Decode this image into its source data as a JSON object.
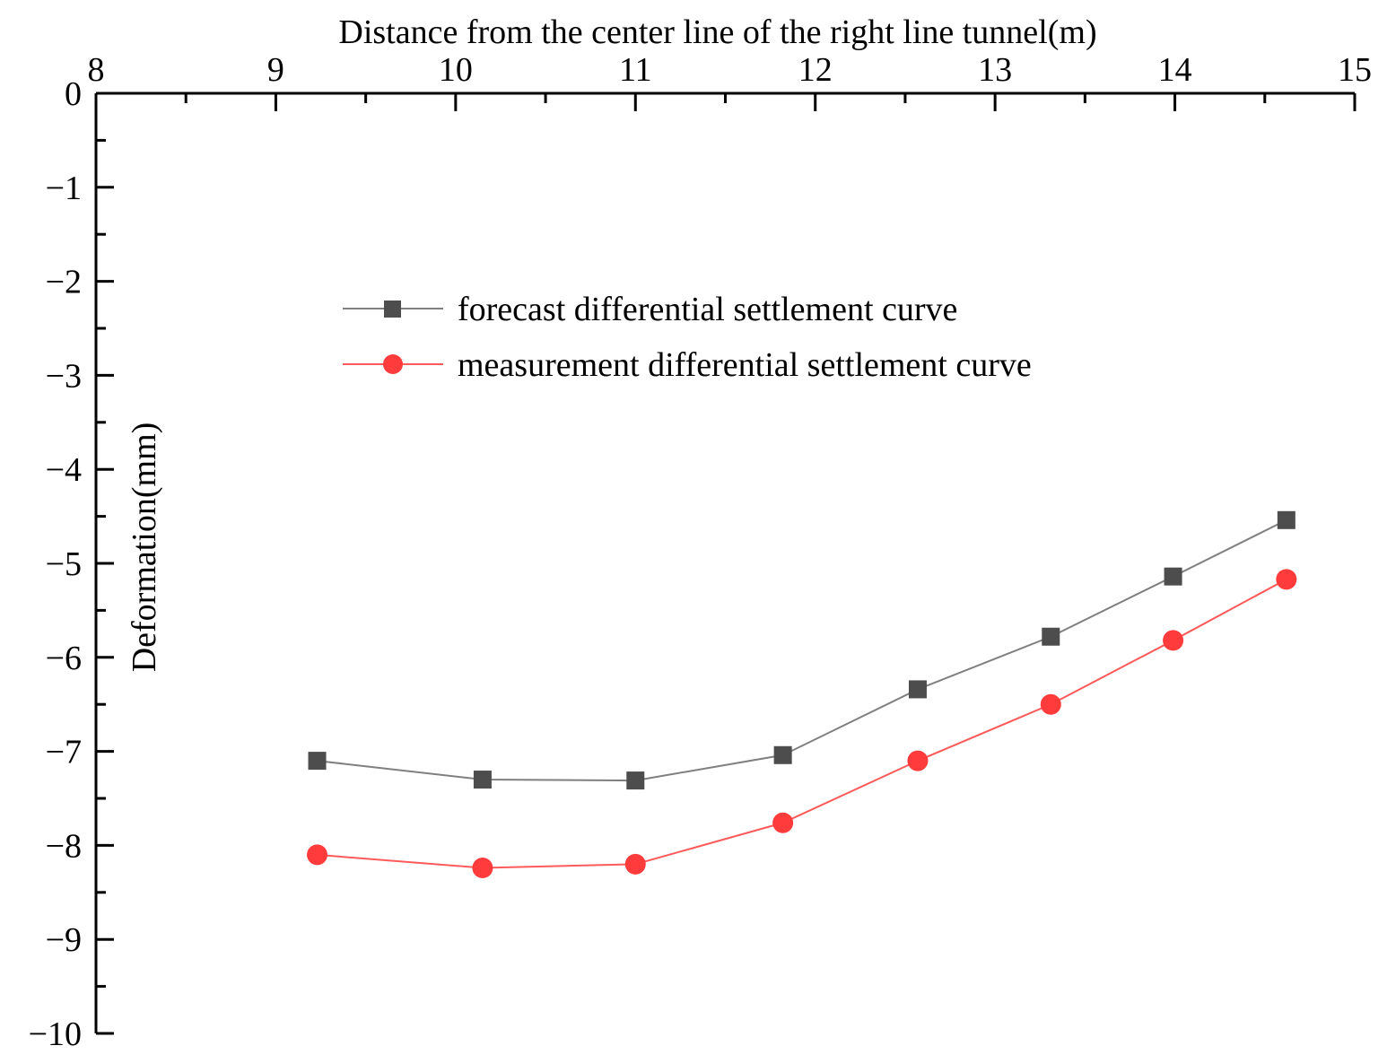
{
  "chart_data": {
    "type": "line",
    "title": "",
    "xlabel": "Distance from the center line of the right line tunnel(m)",
    "ylabel": "Deformation(mm)",
    "xaxis_position": "top",
    "xlim": [
      8,
      15
    ],
    "ylim": [
      -10,
      0
    ],
    "x_ticks": [
      8,
      9,
      10,
      11,
      12,
      13,
      14,
      15
    ],
    "x_tick_labels": [
      "8",
      "9",
      "10",
      "11",
      "12",
      "13",
      "14",
      "15"
    ],
    "y_ticks": [
      0,
      -1,
      -2,
      -3,
      -4,
      -5,
      -6,
      -7,
      -8,
      -9,
      -10
    ],
    "y_tick_labels": [
      "0",
      "−1",
      "−2",
      "−3",
      "−4",
      "−5",
      "−6",
      "−7",
      "−8",
      "−9",
      "−10"
    ],
    "grid": false,
    "legend_position": "top-center",
    "series": [
      {
        "name": "forecast differential settlement curve",
        "marker": "square",
        "color": "#4d4d4d",
        "line_color": "#7f7f7f",
        "x": [
          9.23,
          10.15,
          11.0,
          11.82,
          12.57,
          13.31,
          13.99,
          14.62
        ],
        "y": [
          -7.1,
          -7.3,
          -7.31,
          -7.04,
          -6.34,
          -5.78,
          -5.14,
          -4.54
        ]
      },
      {
        "name": "measurement differential settlement curve",
        "marker": "circle",
        "color": "#ff3b3b",
        "line_color": "#ff5a5a",
        "x": [
          9.23,
          10.15,
          11.0,
          11.82,
          12.57,
          13.31,
          13.99,
          14.62
        ],
        "y": [
          -8.1,
          -8.24,
          -8.2,
          -7.76,
          -7.1,
          -6.5,
          -5.82,
          -5.17
        ]
      }
    ]
  }
}
